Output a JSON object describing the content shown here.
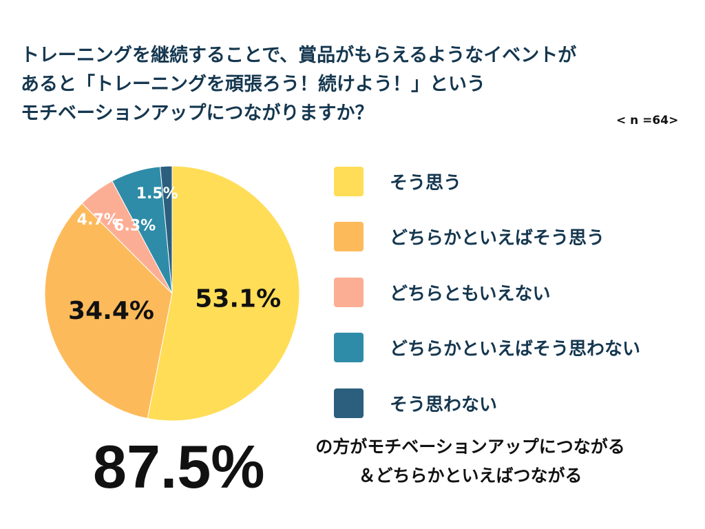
{
  "question": {
    "line1": "トレーニングを継続することで、賞品がもらえるようなイベントが",
    "line2": "あると「トレーニングを頑張ろう！続けよう！」という",
    "line3": "モチベーションアップにつながりますか？"
  },
  "sample_size": "< n =64>",
  "chart_data": {
    "type": "pie",
    "categories": [
      "そう思う",
      "どちらかといえばそう思う",
      "どちらともいえない",
      "どちらかといえばそう思わない",
      "そう思わない"
    ],
    "values": [
      53.1,
      34.4,
      4.7,
      6.3,
      1.5
    ],
    "value_labels": [
      "53.1%",
      "34.4%",
      "4.7%",
      "6.3%",
      "1.5%"
    ],
    "colors": [
      "#FFDD57",
      "#FDBA5B",
      "#FCAE95",
      "#2E8CA8",
      "#2B5F7D"
    ],
    "label_colors": [
      "#111111",
      "#111111",
      "#ffffff",
      "#ffffff",
      "#ffffff"
    ],
    "start": "12 o'clock",
    "direction": "clockwise",
    "legend_position": "right"
  },
  "legend": [
    {
      "label": "そう思う",
      "color": "#FFDD57"
    },
    {
      "label": "どちらかといえばそう思う",
      "color": "#FDBA5B"
    },
    {
      "label": "どちらともいえない",
      "color": "#FCAE95"
    },
    {
      "label": "どちらかといえばそう思わない",
      "color": "#2E8CA8"
    },
    {
      "label": "そう思わない",
      "color": "#2B5F7D"
    }
  ],
  "summary": {
    "big_value": "87.5%",
    "line1": "の方がモチベーションアップにつながる",
    "line2": "＆どちらかといえばつながる"
  }
}
